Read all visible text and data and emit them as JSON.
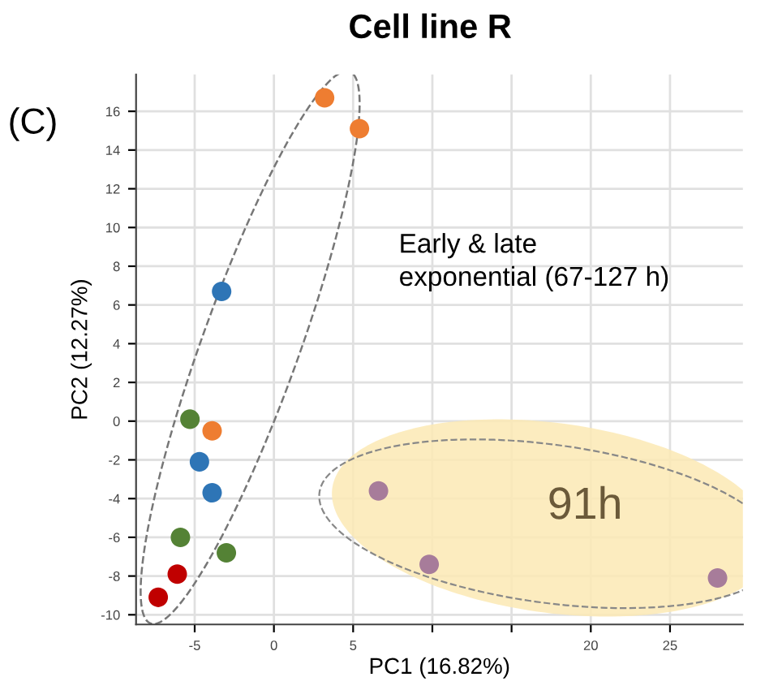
{
  "chart_data": {
    "type": "scatter",
    "title": "Cell line R",
    "xlabel": "PC1 (16.82%)",
    "ylabel": "PC2 (12.27%)",
    "annotations": [
      "(C)",
      "Early & late\nexponential (67-127 h)",
      "91h"
    ],
    "xlim": [
      -8.7,
      29.6
    ],
    "ylim": [
      -10.5,
      17.9
    ],
    "xticks": [
      -5,
      0,
      5,
      {
        "value": 10,
        "label": null
      },
      {
        "value": 15,
        "label": null
      },
      20,
      25
    ],
    "yticks": [
      -10,
      -8,
      -6,
      -4,
      -2,
      0,
      2,
      4,
      6,
      8,
      10,
      12,
      14,
      16
    ],
    "grid": true,
    "marker": "circle",
    "legend": false,
    "series": [
      {
        "color": "#ee7d31",
        "x": [
          3.2,
          5.4,
          -3.9
        ],
        "values": [
          16.7,
          15.1,
          -0.5
        ]
      },
      {
        "color": "#2e75b6",
        "x": [
          -3.3,
          -4.7,
          -3.9
        ],
        "values": [
          6.7,
          -2.1,
          -3.7
        ]
      },
      {
        "color": "#548235",
        "x": [
          -5.3,
          -5.9,
          -3.0
        ],
        "values": [
          0.1,
          -6.0,
          -6.8
        ]
      },
      {
        "color": "#c00000",
        "x": [
          -6.1,
          -7.3
        ],
        "values": [
          -7.9,
          -9.1
        ]
      },
      {
        "color": "#a77c9a",
        "x": [
          6.6,
          9.8,
          28.0
        ],
        "values": [
          -3.6,
          -7.4,
          -8.1
        ]
      }
    ]
  }
}
